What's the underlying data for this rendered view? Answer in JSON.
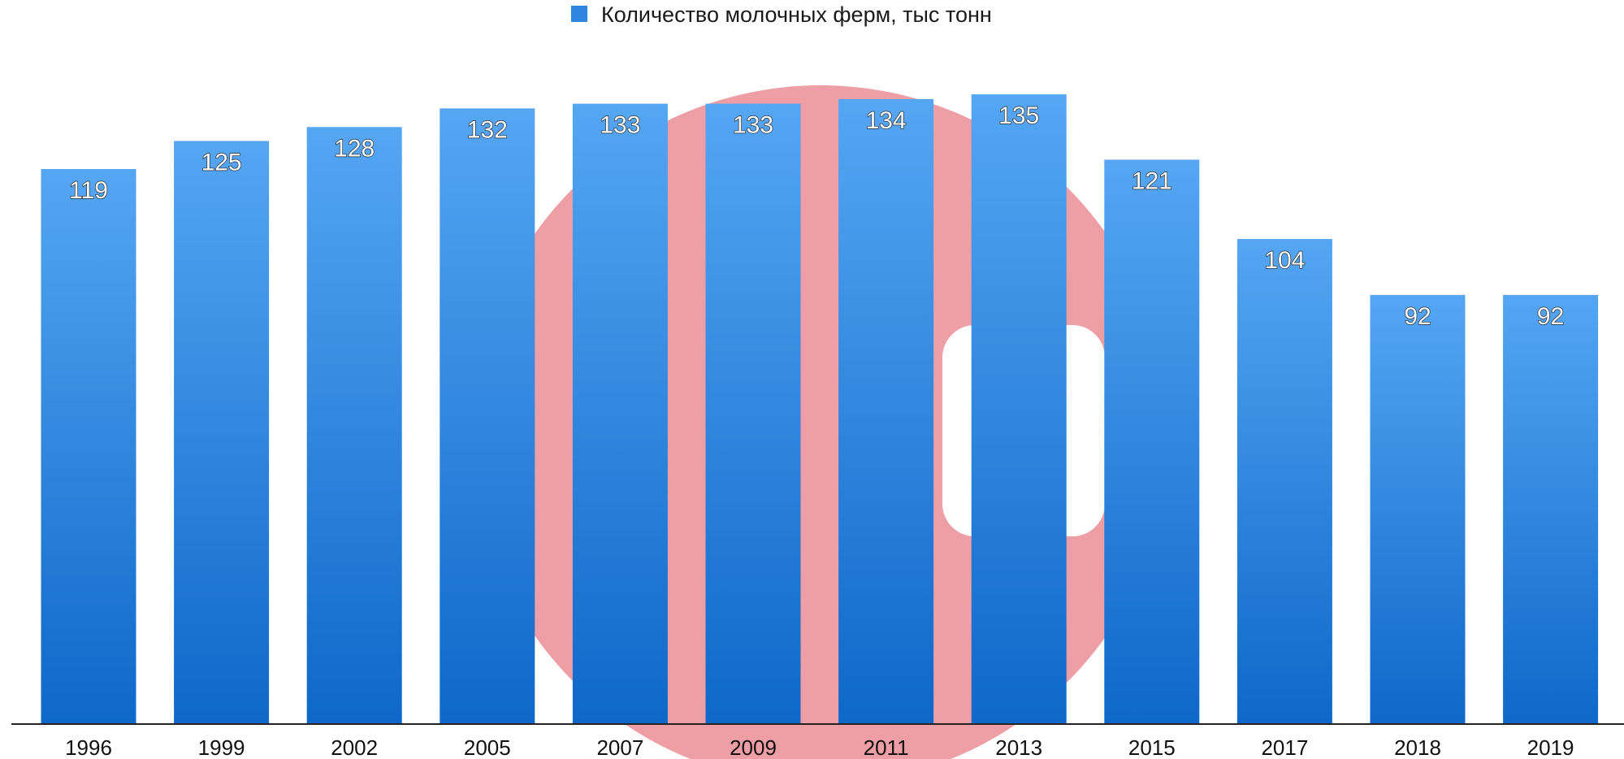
{
  "chart_data": {
    "type": "bar",
    "categories": [
      "1996",
      "1999",
      "2002",
      "2005",
      "2007",
      "2009",
      "2011",
      "2013",
      "2015",
      "2017",
      "2018",
      "2019"
    ],
    "series": [
      {
        "name": "Количество молочных ферм, тыс тонн",
        "values": [
          119,
          125,
          128,
          132,
          133,
          133,
          134,
          135,
          121,
          104,
          92,
          92
        ],
        "color": "#3b8fe5"
      }
    ],
    "ylim": [
      0,
      146
    ],
    "grid": false,
    "legend": "top-center",
    "data_labels": "inside-top",
    "bar_gradient": [
      "#55a6f3",
      "#0e68c9"
    ],
    "title": "",
    "xlabel": "",
    "ylabel": ""
  },
  "watermark": {
    "shape": "circle-logo",
    "color": "#eb8e95"
  }
}
